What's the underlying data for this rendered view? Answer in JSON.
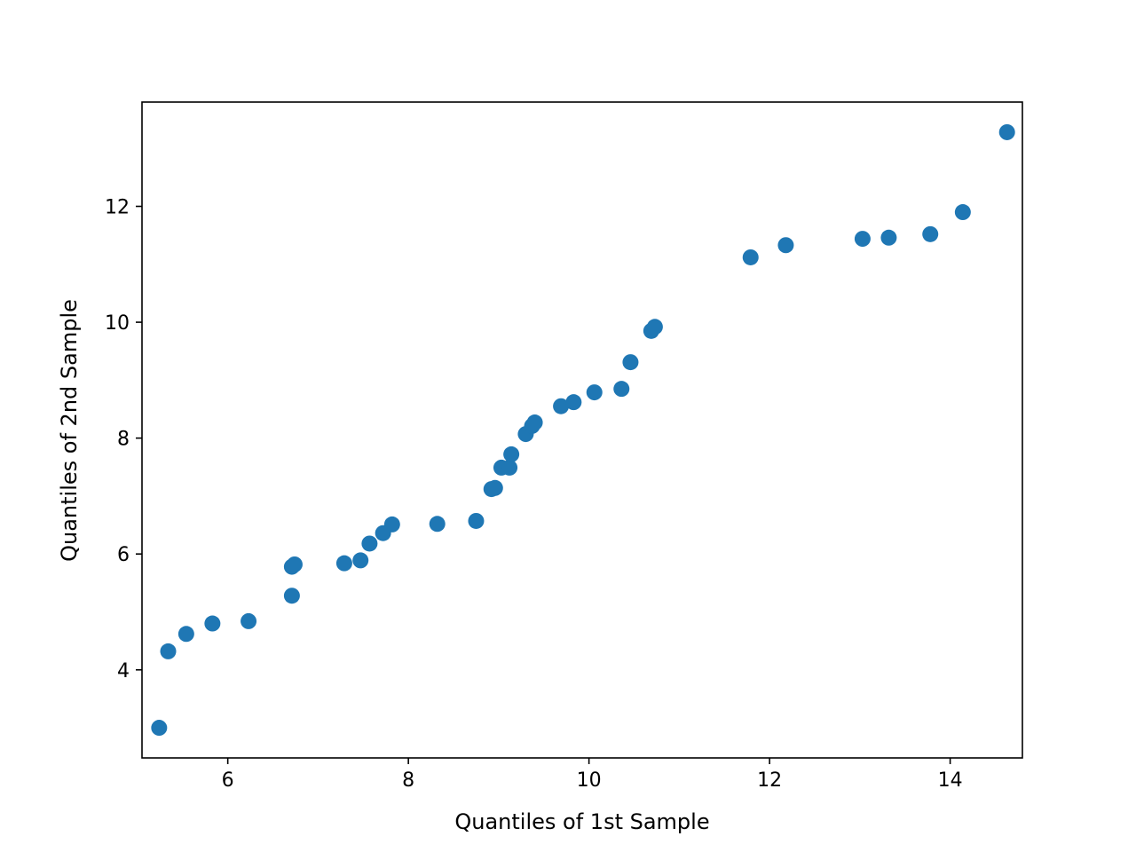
{
  "chart_data": {
    "type": "scatter",
    "title": "",
    "xlabel": "Quantiles of 1st Sample",
    "ylabel": "Quantiles of 2nd Sample",
    "xlim": [
      5.05,
      14.8
    ],
    "ylim": [
      2.48,
      13.8
    ],
    "xticks": [
      6,
      8,
      10,
      12,
      14
    ],
    "yticks": [
      4,
      6,
      8,
      10,
      12
    ],
    "grid": false,
    "marker_color": "#1f77b4",
    "points": [
      {
        "x": 5.24,
        "y": 3.0
      },
      {
        "x": 5.34,
        "y": 4.32
      },
      {
        "x": 5.54,
        "y": 4.62
      },
      {
        "x": 5.83,
        "y": 4.8
      },
      {
        "x": 6.23,
        "y": 4.84
      },
      {
        "x": 6.71,
        "y": 5.28
      },
      {
        "x": 6.71,
        "y": 5.78
      },
      {
        "x": 6.74,
        "y": 5.82
      },
      {
        "x": 7.29,
        "y": 5.84
      },
      {
        "x": 7.47,
        "y": 5.89
      },
      {
        "x": 7.57,
        "y": 6.18
      },
      {
        "x": 7.72,
        "y": 6.36
      },
      {
        "x": 7.82,
        "y": 6.51
      },
      {
        "x": 8.32,
        "y": 6.52
      },
      {
        "x": 8.75,
        "y": 6.57
      },
      {
        "x": 8.92,
        "y": 7.12
      },
      {
        "x": 8.96,
        "y": 7.14
      },
      {
        "x": 9.03,
        "y": 7.49
      },
      {
        "x": 9.12,
        "y": 7.49
      },
      {
        "x": 9.14,
        "y": 7.72
      },
      {
        "x": 9.3,
        "y": 8.07
      },
      {
        "x": 9.37,
        "y": 8.21
      },
      {
        "x": 9.4,
        "y": 8.27
      },
      {
        "x": 9.69,
        "y": 8.55
      },
      {
        "x": 9.83,
        "y": 8.62
      },
      {
        "x": 10.06,
        "y": 8.79
      },
      {
        "x": 10.36,
        "y": 8.85
      },
      {
        "x": 10.46,
        "y": 9.31
      },
      {
        "x": 10.69,
        "y": 9.85
      },
      {
        "x": 10.73,
        "y": 9.92
      },
      {
        "x": 11.79,
        "y": 11.12
      },
      {
        "x": 12.18,
        "y": 11.33
      },
      {
        "x": 13.03,
        "y": 11.44
      },
      {
        "x": 13.32,
        "y": 11.46
      },
      {
        "x": 13.78,
        "y": 11.52
      },
      {
        "x": 14.14,
        "y": 11.9
      },
      {
        "x": 14.63,
        "y": 13.28
      }
    ]
  }
}
